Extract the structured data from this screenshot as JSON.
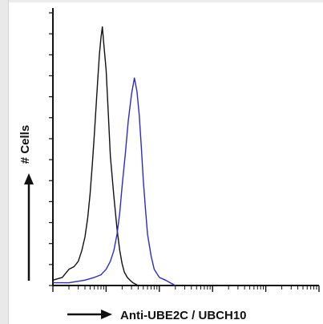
{
  "chart_data": {
    "type": "line",
    "title": "",
    "xlabel": "Anti-UBE2C / UBCH10",
    "ylabel": "# Cells",
    "x_scale": "log",
    "xlim": [
      1,
      100000
    ],
    "ylim": [
      0,
      100
    ],
    "grid": false,
    "legend": "none",
    "series": [
      {
        "color": "#111111",
        "x": [
          1,
          1.5,
          2,
          2.5,
          3,
          3.5,
          4,
          4.5,
          5,
          5.5,
          6,
          6.5,
          7,
          7.5,
          8,
          8.5,
          9,
          10,
          11,
          12,
          14,
          16,
          18,
          20,
          22,
          25,
          28,
          32,
          40
        ],
        "values": [
          2,
          3,
          6,
          7,
          9,
          13,
          18,
          25,
          34,
          45,
          56,
          67,
          77,
          86,
          92,
          96,
          90,
          80,
          64,
          48,
          33,
          21,
          13,
          8,
          5,
          3,
          2,
          1,
          0
        ]
      },
      {
        "color": "#2a2ad0",
        "x": [
          1,
          2,
          4,
          6,
          8,
          10,
          12,
          14,
          16,
          18,
          20,
          23,
          26,
          30,
          34,
          38,
          42,
          46,
          50,
          55,
          60,
          70,
          80,
          100,
          130,
          160,
          200
        ],
        "values": [
          1,
          1,
          2,
          3,
          4,
          6,
          9,
          13,
          19,
          27,
          37,
          49,
          61,
          71,
          77,
          72,
          63,
          51,
          39,
          28,
          19,
          11,
          6,
          3,
          2,
          1,
          0
        ]
      }
    ]
  }
}
